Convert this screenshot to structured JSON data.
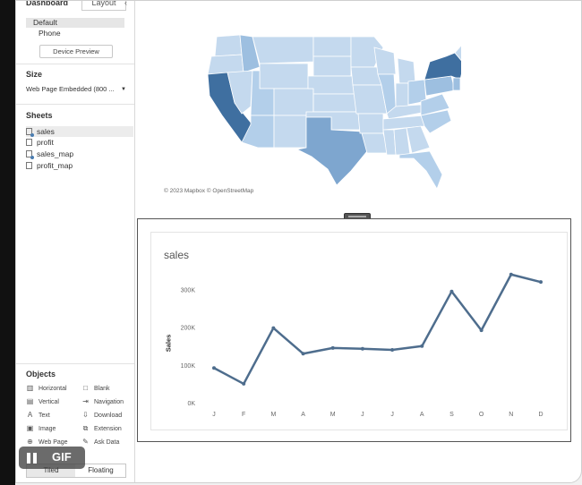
{
  "sidebar": {
    "tab_dashboard": "Dashboard",
    "tab_layout": "Layout",
    "chevron": "‹",
    "devices": [
      "Default",
      "Phone"
    ],
    "device_preview": "Device Preview",
    "size_heading": "Size",
    "size_value": "Web Page Embedded (800 ...",
    "sheets_heading": "Sheets",
    "sheets": [
      "sales",
      "profit",
      "sales_map",
      "profit_map"
    ],
    "objects_heading": "Objects",
    "objects": [
      "Horizontal",
      "Vertical",
      "Text",
      "Image",
      "Web Page",
      "Blank",
      "Navigation",
      "Download",
      "Extension",
      "Ask Data"
    ],
    "tiled": "Tiled",
    "floating": "Floating"
  },
  "overlay": {
    "gif_label": "GIF"
  },
  "map": {
    "attribution": "© 2023 Mapbox © OpenStreetMap"
  },
  "chart_data": {
    "type": "line",
    "title": "sales",
    "ylabel": "Sales",
    "categories": [
      "J",
      "F",
      "M",
      "A",
      "M",
      "J",
      "J",
      "A",
      "S",
      "O",
      "N",
      "D"
    ],
    "values": [
      92000,
      50000,
      198000,
      130000,
      145000,
      143000,
      140000,
      150000,
      295000,
      192000,
      340000,
      320000
    ],
    "yticks": [
      0,
      100000,
      200000,
      300000
    ],
    "ytick_labels": [
      "0K",
      "100K",
      "200K",
      "300K"
    ],
    "ylim": [
      0,
      375000
    ],
    "color": "#4e6d8d",
    "grid": false
  },
  "colors": {
    "accent": "#4a7db1",
    "map_light": "#c4d9ee",
    "map_dark": "#3f6fa0"
  }
}
